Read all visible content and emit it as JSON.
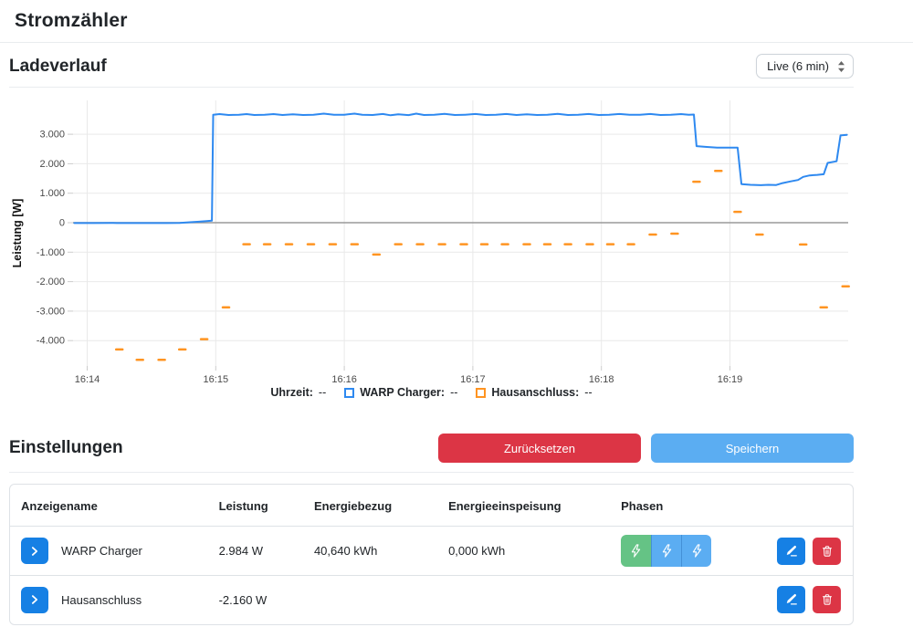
{
  "page": {
    "title": "Stromzähler"
  },
  "chart_section": {
    "title": "Ladeverlauf",
    "range_select": {
      "value": "Live (6 min)"
    }
  },
  "legend": {
    "time_label": "Uhrzeit:",
    "time_value": "--",
    "series": [
      {
        "label": "WARP Charger:",
        "value": "--",
        "color": "#2e89f0"
      },
      {
        "label": "Hausanschluss:",
        "value": "--",
        "color": "#ff9421"
      }
    ]
  },
  "chart_data": {
    "type": "line",
    "title": "Ladeverlauf",
    "xlabel": "",
    "ylabel": "Leistung [W]",
    "x_format": "16:MM (minutes after 16:00)",
    "xlim": [
      13.89,
      19.92
    ],
    "ylim": [
      -4860,
      4150
    ],
    "grid": true,
    "legend_position": "bottom",
    "x_ticks": [
      {
        "value": 14,
        "label": "16:14"
      },
      {
        "value": 15,
        "label": "16:15"
      },
      {
        "value": 16,
        "label": "16:16"
      },
      {
        "value": 17,
        "label": "16:17"
      },
      {
        "value": 18,
        "label": "16:18"
      },
      {
        "value": 19,
        "label": "16:19"
      }
    ],
    "y_ticks": [
      {
        "value": 3000,
        "label": "3.000"
      },
      {
        "value": 2000,
        "label": "2.000"
      },
      {
        "value": 1000,
        "label": "1.000"
      },
      {
        "value": 0,
        "label": "0"
      },
      {
        "value": -1000,
        "label": "-1.000"
      },
      {
        "value": -2000,
        "label": "-2.000"
      },
      {
        "value": -3000,
        "label": "-3.000"
      },
      {
        "value": -4000,
        "label": "-4.000"
      }
    ],
    "series": [
      {
        "name": "WARP Charger",
        "color": "#2e89f0",
        "style": "line",
        "points": [
          [
            13.9,
            -10
          ],
          [
            14.05,
            -12
          ],
          [
            14.2,
            -8
          ],
          [
            14.35,
            -12
          ],
          [
            14.5,
            -10
          ],
          [
            14.62,
            -12
          ],
          [
            14.72,
            -5
          ],
          [
            14.8,
            15
          ],
          [
            14.87,
            35
          ],
          [
            14.93,
            55
          ],
          [
            14.97,
            70
          ],
          [
            14.98,
            3660
          ],
          [
            15.03,
            3685
          ],
          [
            15.1,
            3655
          ],
          [
            15.18,
            3660
          ],
          [
            15.24,
            3685
          ],
          [
            15.3,
            3655
          ],
          [
            15.38,
            3660
          ],
          [
            15.45,
            3685
          ],
          [
            15.52,
            3655
          ],
          [
            15.6,
            3680
          ],
          [
            15.68,
            3655
          ],
          [
            15.76,
            3660
          ],
          [
            15.84,
            3700
          ],
          [
            15.92,
            3660
          ],
          [
            16.0,
            3665
          ],
          [
            16.08,
            3700
          ],
          [
            16.14,
            3660
          ],
          [
            16.22,
            3655
          ],
          [
            16.3,
            3690
          ],
          [
            16.36,
            3645
          ],
          [
            16.42,
            3680
          ],
          [
            16.5,
            3650
          ],
          [
            16.56,
            3700
          ],
          [
            16.62,
            3655
          ],
          [
            16.7,
            3665
          ],
          [
            16.78,
            3695
          ],
          [
            16.86,
            3655
          ],
          [
            16.94,
            3665
          ],
          [
            17.02,
            3690
          ],
          [
            17.1,
            3655
          ],
          [
            17.18,
            3665
          ],
          [
            17.26,
            3690
          ],
          [
            17.34,
            3655
          ],
          [
            17.42,
            3680
          ],
          [
            17.5,
            3655
          ],
          [
            17.58,
            3665
          ],
          [
            17.66,
            3695
          ],
          [
            17.74,
            3655
          ],
          [
            17.82,
            3665
          ],
          [
            17.9,
            3690
          ],
          [
            17.98,
            3655
          ],
          [
            18.06,
            3665
          ],
          [
            18.14,
            3690
          ],
          [
            18.22,
            3660
          ],
          [
            18.3,
            3665
          ],
          [
            18.38,
            3690
          ],
          [
            18.46,
            3655
          ],
          [
            18.54,
            3665
          ],
          [
            18.62,
            3685
          ],
          [
            18.68,
            3660
          ],
          [
            18.72,
            3670
          ],
          [
            18.74,
            2600
          ],
          [
            18.82,
            2570
          ],
          [
            18.9,
            2550
          ],
          [
            19.0,
            2545
          ],
          [
            19.06,
            2545
          ],
          [
            19.09,
            1310
          ],
          [
            19.16,
            1285
          ],
          [
            19.24,
            1275
          ],
          [
            19.3,
            1285
          ],
          [
            19.36,
            1280
          ],
          [
            19.41,
            1345
          ],
          [
            19.47,
            1400
          ],
          [
            19.53,
            1450
          ],
          [
            19.57,
            1555
          ],
          [
            19.62,
            1605
          ],
          [
            19.68,
            1625
          ],
          [
            19.73,
            1645
          ],
          [
            19.76,
            2030
          ],
          [
            19.83,
            2085
          ],
          [
            19.86,
            2960
          ],
          [
            19.91,
            2984
          ]
        ]
      },
      {
        "name": "Hausanschluss",
        "color": "#ff9421",
        "style": "dashes",
        "points": [
          [
            14.25,
            -4300
          ],
          [
            14.41,
            -4650
          ],
          [
            14.58,
            -4650
          ],
          [
            14.74,
            -4300
          ],
          [
            14.91,
            -3950
          ],
          [
            15.08,
            -2870
          ],
          [
            15.24,
            -730
          ],
          [
            15.4,
            -730
          ],
          [
            15.57,
            -730
          ],
          [
            15.74,
            -730
          ],
          [
            15.91,
            -730
          ],
          [
            16.08,
            -730
          ],
          [
            16.25,
            -1080
          ],
          [
            16.42,
            -730
          ],
          [
            16.59,
            -730
          ],
          [
            16.76,
            -730
          ],
          [
            16.93,
            -730
          ],
          [
            17.09,
            -730
          ],
          [
            17.25,
            -730
          ],
          [
            17.42,
            -730
          ],
          [
            17.58,
            -730
          ],
          [
            17.74,
            -730
          ],
          [
            17.91,
            -730
          ],
          [
            18.07,
            -730
          ],
          [
            18.23,
            -730
          ],
          [
            18.4,
            -400
          ],
          [
            18.57,
            -370
          ],
          [
            18.74,
            1390
          ],
          [
            18.91,
            1760
          ],
          [
            19.06,
            370
          ],
          [
            19.23,
            -400
          ],
          [
            19.57,
            -740
          ],
          [
            19.73,
            -2870
          ],
          [
            19.9,
            -2160
          ]
        ]
      }
    ]
  },
  "settings": {
    "title": "Einstellungen",
    "reset_label": "Zurücksetzen",
    "save_label": "Speichern",
    "table": {
      "headers": [
        "Anzeigename",
        "Leistung",
        "Energiebezug",
        "Energieeinspeisung",
        "Phasen"
      ],
      "rows": [
        {
          "name": "WARP Charger",
          "power": "2.984 W",
          "energy_import": "40,640 kWh",
          "energy_export": "0,000 kWh",
          "phases": [
            {
              "color": "#65c385"
            },
            {
              "color": "#5badf2"
            },
            {
              "color": "#5badf2"
            }
          ]
        },
        {
          "name": "Hausanschluss",
          "power": "-2.160 W",
          "energy_import": "",
          "energy_export": "",
          "phases": []
        }
      ]
    }
  },
  "colors": {
    "accent_blue": "#1680e4",
    "chart_blue": "#2e89f0",
    "chart_orange": "#ff9421",
    "save_blue": "#5badf2",
    "danger_red": "#dc3545",
    "phase_green": "#65c385",
    "phase_blue": "#5badf2",
    "zero_line": "#9a9a9a",
    "grid_line": "#e9e9e9"
  }
}
